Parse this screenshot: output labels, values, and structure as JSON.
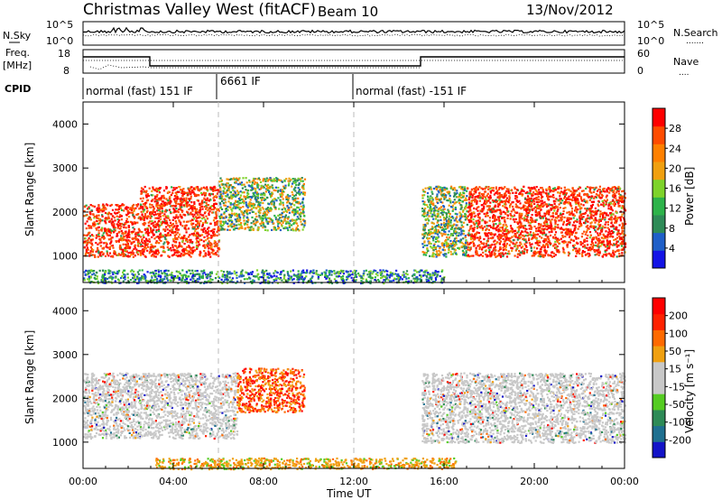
{
  "header": {
    "title": "Christmas Valley West (fitACF)",
    "beam": "Beam 10",
    "date": "13/Nov/2012"
  },
  "panels": {
    "nsky": {
      "label": "N.Sky",
      "left_ticks": [
        "10^5",
        "10^0"
      ],
      "right_ticks": [
        "10^5",
        "10^0"
      ],
      "right_label": "N.Search",
      "right_legend": "......."
    },
    "freq": {
      "label": "Freq.",
      "unit": "[MHz]",
      "left_ticks": [
        "18",
        "8"
      ],
      "right_ticks": [
        "60",
        "0"
      ],
      "right_label": "Nave",
      "right_legend": "...."
    },
    "cpid": {
      "label": "CPID",
      "modes": [
        "normal (fast) 151 IF",
        "6661 IF",
        "normal (fast) -151 IF"
      ]
    }
  },
  "colors": {
    "power": [
      "#1414e6",
      "#1f5fc8",
      "#2e8b57",
      "#2db34a",
      "#7ed32b",
      "#f0a010",
      "#ff8000",
      "#ff4c00",
      "#ff0000"
    ],
    "velocity": [
      "#1414c8",
      "#1f7090",
      "#2e8b57",
      "#55cc22",
      "#c8c8c8",
      "#c8c8c8",
      "#f0a010",
      "#ff6a00",
      "#ff2200",
      "#ff0000"
    ]
  },
  "chart_data": [
    {
      "type": "heatmap",
      "name": "power",
      "ylabel": "Slant Range [km]",
      "ylim": [
        400,
        4500
      ],
      "y_ticks": [
        1000,
        2000,
        3000,
        4000
      ],
      "xlim_hours": [
        0,
        24
      ],
      "colorbar": {
        "label": "Power [dB]",
        "ticks": [
          "28",
          "24",
          "20",
          "16",
          "12",
          "8",
          "4"
        ]
      },
      "scatter_regions": [
        {
          "x": [
            0.0,
            2.5
          ],
          "y": [
            1000,
            2200
          ],
          "value": "high"
        },
        {
          "x": [
            2.5,
            6.0
          ],
          "y": [
            1000,
            2600
          ],
          "value": "high"
        },
        {
          "x": [
            6.0,
            9.8
          ],
          "y": [
            1600,
            2800
          ],
          "value": "mid"
        },
        {
          "x": [
            15.0,
            17.0
          ],
          "y": [
            1000,
            2600
          ],
          "value": "mid"
        },
        {
          "x": [
            17.0,
            24.0
          ],
          "y": [
            1000,
            2600
          ],
          "value": "high"
        },
        {
          "x": [
            0.0,
            16.0
          ],
          "y": [
            400,
            700
          ],
          "value": "low"
        }
      ]
    },
    {
      "type": "heatmap",
      "name": "velocity",
      "ylabel": "Slant Range [km]",
      "ylim": [
        400,
        4500
      ],
      "y_ticks": [
        1000,
        2000,
        3000,
        4000
      ],
      "xlim_hours": [
        0,
        24
      ],
      "xlabel": "Time UT",
      "x_ticks": [
        "00:00",
        "04:00",
        "08:00",
        "12:00",
        "16:00",
        "20:00",
        "00:00"
      ],
      "colorbar": {
        "label": "Velocity [m s⁻¹]",
        "ticks": [
          "200",
          "100",
          "50",
          "15",
          "-15",
          "-50",
          "-100",
          "-200"
        ]
      },
      "scatter_regions": [
        {
          "x": [
            0.0,
            6.8
          ],
          "y": [
            1100,
            2600
          ],
          "value": "near-zero"
        },
        {
          "x": [
            6.8,
            9.8
          ],
          "y": [
            1700,
            2700
          ],
          "value": "negative"
        },
        {
          "x": [
            15.0,
            24.0
          ],
          "y": [
            1000,
            2600
          ],
          "value": "near-zero"
        },
        {
          "x": [
            3.2,
            16.5
          ],
          "y": [
            400,
            650
          ],
          "value": "slight-negative"
        }
      ]
    }
  ]
}
